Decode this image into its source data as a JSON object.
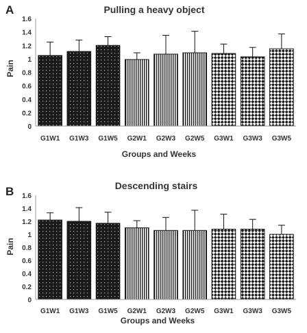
{
  "chart_data": [
    {
      "panel": "A",
      "type": "bar",
      "title": "Pulling a heavy object",
      "xlabel": "Groups and Weeks",
      "ylabel": "Pain",
      "ylim": [
        0,
        1.6
      ],
      "yticks": [
        "0",
        "0.2",
        "0.4",
        "0.6",
        "0.8",
        "1",
        "1.2",
        "1.4",
        "1.6"
      ],
      "categories": [
        "G1W1",
        "G1W3",
        "G1W5",
        "G2W1",
        "G2W3",
        "G2W5",
        "G3W1",
        "G3W3",
        "G3W5"
      ],
      "values": [
        1.05,
        1.11,
        1.2,
        0.99,
        1.07,
        1.09,
        1.08,
        1.03,
        1.15
      ],
      "error_upper": [
        1.25,
        1.28,
        1.33,
        1.09,
        1.35,
        1.41,
        1.22,
        1.17,
        1.37
      ],
      "patterns": [
        "dots",
        "dots",
        "dots",
        "stripes",
        "stripes",
        "stripes",
        "checker",
        "checker",
        "checker"
      ],
      "grid": false
    },
    {
      "panel": "B",
      "type": "bar",
      "title": "Descending stairs",
      "xlabel": "Groups and Weeks",
      "ylabel": "Pain",
      "ylim": [
        0,
        1.6
      ],
      "yticks": [
        "0",
        "0.2",
        "0.4",
        "0.6",
        "0.8",
        "1",
        "1.2",
        "1.4",
        "1.6"
      ],
      "categories": [
        "G1W1",
        "G1W3",
        "G1W5",
        "G2W1",
        "G2W3",
        "G2W5",
        "G3W1",
        "G3W3",
        "G3W5"
      ],
      "values": [
        1.22,
        1.2,
        1.17,
        1.1,
        1.06,
        1.06,
        1.08,
        1.08,
        1.0
      ],
      "error_upper": [
        1.33,
        1.41,
        1.34,
        1.21,
        1.26,
        1.37,
        1.31,
        1.23,
        1.14
      ],
      "patterns": [
        "dots",
        "dots",
        "dots",
        "stripes",
        "stripes",
        "stripes",
        "checker",
        "checker",
        "checker"
      ],
      "grid": false
    }
  ],
  "colors": {
    "bar_dark": "#1a1a1a",
    "bar_light": "#ffffff",
    "axis": "#999999",
    "text": "#333333"
  }
}
